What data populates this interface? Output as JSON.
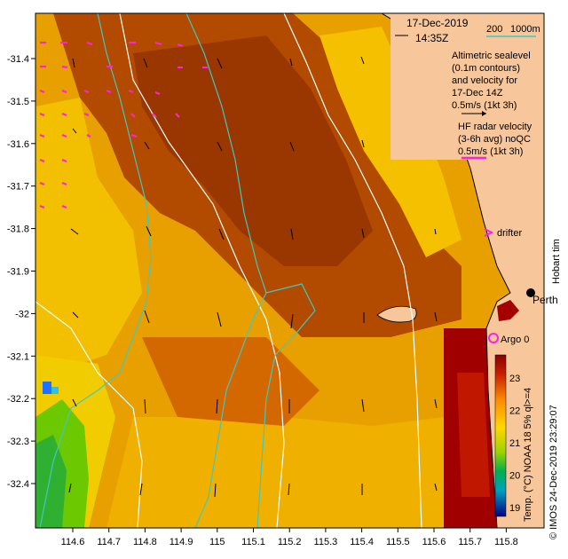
{
  "header": {
    "date": "17-Dec-2019",
    "time": "14:35Z",
    "depth_contour_200": "200",
    "depth_contour_1000": "1000m"
  },
  "legend": {
    "altimetric_lines": [
      "Altimetric sealevel",
      "(0.1m contours)",
      "and velocity for",
      "17-Dec 14Z"
    ],
    "altimetric_scale": "0.5m/s (1kt 3h)",
    "hf_lines": [
      "HF radar velocity",
      "(3-6h avg) noQC"
    ],
    "hf_scale": "0.5m/s (1kt 3h)",
    "drifter": "drifter",
    "argo": "Argo 0",
    "city": "Perth",
    "hobart_label": "Hobart tim"
  },
  "colorbar": {
    "label": "Temp. (°C) NOAA 18 5% ql>=4",
    "ticks": [
      "23",
      "22",
      "21",
      "20",
      "19"
    ],
    "colors": {
      "warm": "#9b0000",
      "mid": "#ffd000",
      "cool": "#00a050",
      "cold": "#0000a0"
    }
  },
  "credit": "© IMOS 24-Dec-2019 23:29:07",
  "axes": {
    "x_ticks": [
      "114.6",
      "114.7",
      "114.8",
      "114.9",
      "115",
      "115.1",
      "115.2",
      "115.3",
      "115.4",
      "115.5",
      "115.6",
      "115.7",
      "115.8"
    ],
    "y_ticks": [
      "-31.4",
      "-31.5",
      "-31.6",
      "-31.7",
      "-31.8",
      "-31.9",
      "-32",
      "-32.1",
      "-32.2",
      "-32.3",
      "-32.4"
    ]
  },
  "colors": {
    "land": "#f7c69a",
    "sst_dark": "#a43c00",
    "sst_orange": "#e07800",
    "sst_yellow": "#f4c400",
    "contour": "#40c8c0",
    "hf_arrow": "#ff20e0"
  }
}
